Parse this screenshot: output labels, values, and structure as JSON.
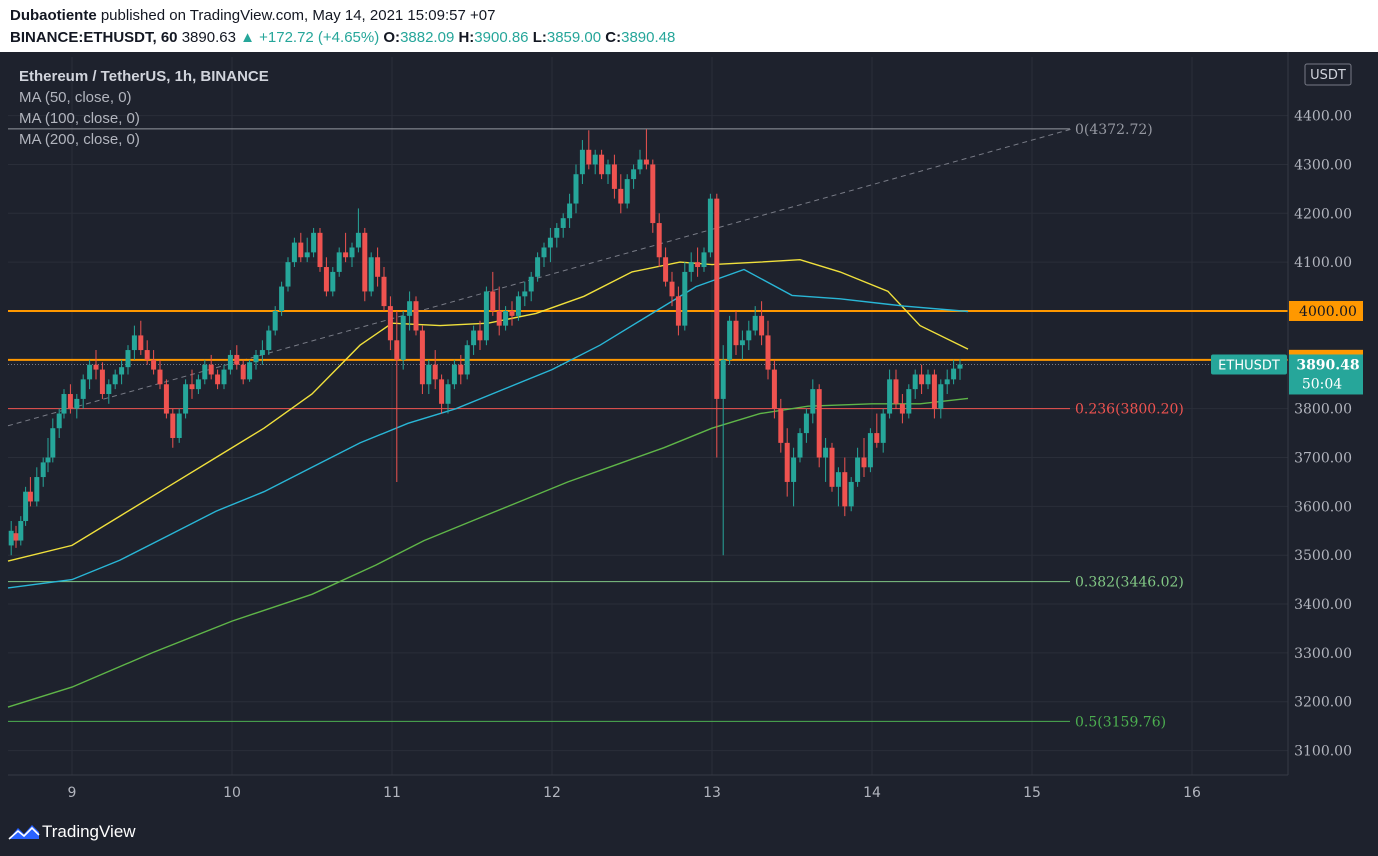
{
  "header": {
    "author": "Dubaotiente",
    "published": "published on TradingView.com, May 14, 2021 15:09:57 +07",
    "symbol": "BINANCE:ETHUSDT, 60",
    "last": "3890.63",
    "change": "▲ +172.72 (+4.65%)",
    "o_label": "O:",
    "o_value": "3882.09",
    "h_label": "H:",
    "h_value": "3900.86",
    "l_label": "L:",
    "l_value": "3859.00",
    "c_label": "C:",
    "c_value": "3890.48"
  },
  "legend": {
    "title": "Ethereum / TetherUS, 1h, BINANCE",
    "ma50": "MA (50, close, 0)",
    "ma100": "MA (100, close, 0)",
    "ma200": "MA (200, close, 0)"
  },
  "footer": {
    "brand": "TradingView"
  },
  "colors": {
    "background": "#1e222d",
    "up": "#26a69a",
    "down": "#ef5350",
    "ma50": "#f0e03c",
    "ma100": "#29b6d6",
    "ma200": "#5fb548",
    "level": "#ff9800"
  },
  "chart_data": {
    "type": "candlestick",
    "currency": "USDT",
    "ylim": [
      3050,
      4520
    ],
    "xlim": [
      8.6,
      16.6
    ],
    "y_ticks": [
      "4400.00",
      "4300.00",
      "4200.00",
      "4100.00",
      "3800.00",
      "3700.00",
      "3600.00",
      "3500.00",
      "3400.00",
      "3300.00",
      "3200.00",
      "3100.00"
    ],
    "y_tick_values": [
      4400,
      4300,
      4200,
      4100,
      3800,
      3700,
      3600,
      3500,
      3400,
      3300,
      3200,
      3100
    ],
    "x_ticks": [
      "9",
      "10",
      "11",
      "12",
      "13",
      "14",
      "15",
      "16"
    ],
    "x_tick_values": [
      9,
      10,
      11,
      12,
      13,
      14,
      15,
      16
    ],
    "horizontal_levels": [
      {
        "value": 4000,
        "label": "4000.00"
      },
      {
        "value": 3900,
        "label": "3900.00"
      }
    ],
    "last_price": {
      "symbol": "ETHUSDT",
      "value": "3890.48",
      "countdown": "50:04",
      "price": 3890.48
    },
    "fib_levels": [
      {
        "label": "0(4372.72)",
        "value": 4372.72,
        "color": "#9598a1"
      },
      {
        "label": "0.236(3800.20)",
        "value": 3800.2,
        "color": "#ef5350"
      },
      {
        "label": "0.382(3446.02)",
        "value": 3446.02,
        "color": "#81c784"
      },
      {
        "label": "0.5(3159.76)",
        "value": 3159.76,
        "color": "#4caf50"
      }
    ],
    "trend_line": {
      "from": [
        8.6,
        3765
      ],
      "to": [
        15.25,
        4372.72
      ]
    },
    "ma50": [
      [
        8.6,
        3488
      ],
      [
        9.0,
        3520
      ],
      [
        9.3,
        3580
      ],
      [
        9.6,
        3640
      ],
      [
        9.9,
        3700
      ],
      [
        10.2,
        3760
      ],
      [
        10.5,
        3830
      ],
      [
        10.8,
        3930
      ],
      [
        11.0,
        3975
      ],
      [
        11.3,
        3970
      ],
      [
        11.6,
        3975
      ],
      [
        11.9,
        3995
      ],
      [
        12.2,
        4030
      ],
      [
        12.5,
        4080
      ],
      [
        12.8,
        4100
      ],
      [
        13.0,
        4095
      ],
      [
        13.3,
        4100
      ],
      [
        13.55,
        4105
      ],
      [
        13.8,
        4080
      ],
      [
        14.1,
        4040
      ],
      [
        14.3,
        3970
      ],
      [
        14.6,
        3922
      ]
    ],
    "ma100": [
      [
        8.6,
        3433
      ],
      [
        9.0,
        3450
      ],
      [
        9.3,
        3490
      ],
      [
        9.6,
        3540
      ],
      [
        9.9,
        3590
      ],
      [
        10.2,
        3630
      ],
      [
        10.5,
        3680
      ],
      [
        10.8,
        3730
      ],
      [
        11.1,
        3770
      ],
      [
        11.4,
        3800
      ],
      [
        11.7,
        3840
      ],
      [
        12.0,
        3880
      ],
      [
        12.3,
        3930
      ],
      [
        12.6,
        3990
      ],
      [
        12.9,
        4050
      ],
      [
        13.2,
        4085
      ],
      [
        13.5,
        4032
      ],
      [
        13.8,
        4025
      ],
      [
        14.2,
        4010
      ],
      [
        14.6,
        3999
      ]
    ],
    "ma200": [
      [
        8.6,
        3189
      ],
      [
        9.0,
        3230
      ],
      [
        9.5,
        3300
      ],
      [
        10.0,
        3365
      ],
      [
        10.5,
        3420
      ],
      [
        10.9,
        3480
      ],
      [
        11.2,
        3530
      ],
      [
        11.5,
        3570
      ],
      [
        11.8,
        3610
      ],
      [
        12.1,
        3650
      ],
      [
        12.4,
        3685
      ],
      [
        12.7,
        3720
      ],
      [
        13.0,
        3760
      ],
      [
        13.3,
        3790
      ],
      [
        13.6,
        3805
      ],
      [
        14.0,
        3810
      ],
      [
        14.3,
        3810
      ],
      [
        14.6,
        3821
      ]
    ],
    "candles": [
      [
        8.62,
        3520,
        3570,
        3500,
        3550
      ],
      [
        8.65,
        3545,
        3560,
        3515,
        3530
      ],
      [
        8.68,
        3530,
        3580,
        3520,
        3570
      ],
      [
        8.71,
        3570,
        3640,
        3560,
        3630
      ],
      [
        8.74,
        3630,
        3660,
        3600,
        3610
      ],
      [
        8.78,
        3610,
        3680,
        3600,
        3660
      ],
      [
        8.82,
        3660,
        3700,
        3640,
        3690
      ],
      [
        8.85,
        3690,
        3740,
        3670,
        3700
      ],
      [
        8.88,
        3700,
        3780,
        3690,
        3760
      ],
      [
        8.92,
        3760,
        3800,
        3740,
        3790
      ],
      [
        8.95,
        3790,
        3840,
        3780,
        3830
      ],
      [
        8.99,
        3830,
        3850,
        3790,
        3800
      ],
      [
        9.03,
        3800,
        3830,
        3780,
        3820
      ],
      [
        9.07,
        3820,
        3870,
        3800,
        3860
      ],
      [
        9.11,
        3860,
        3900,
        3840,
        3890
      ],
      [
        9.15,
        3890,
        3920,
        3860,
        3880
      ],
      [
        9.19,
        3880,
        3895,
        3820,
        3830
      ],
      [
        9.23,
        3830,
        3860,
        3810,
        3850
      ],
      [
        9.27,
        3850,
        3880,
        3840,
        3870
      ],
      [
        9.31,
        3870,
        3900,
        3850,
        3885
      ],
      [
        9.35,
        3885,
        3930,
        3870,
        3920
      ],
      [
        9.39,
        3920,
        3970,
        3900,
        3950
      ],
      [
        9.43,
        3950,
        3980,
        3910,
        3920
      ],
      [
        9.47,
        3920,
        3940,
        3890,
        3900
      ],
      [
        9.51,
        3900,
        3920,
        3870,
        3880
      ],
      [
        9.55,
        3880,
        3900,
        3840,
        3850
      ],
      [
        9.59,
        3850,
        3860,
        3780,
        3790
      ],
      [
        9.63,
        3790,
        3800,
        3720,
        3740
      ],
      [
        9.67,
        3740,
        3800,
        3730,
        3790
      ],
      [
        9.71,
        3790,
        3860,
        3780,
        3850
      ],
      [
        9.75,
        3850,
        3880,
        3820,
        3840
      ],
      [
        9.79,
        3840,
        3870,
        3830,
        3860
      ],
      [
        9.83,
        3860,
        3900,
        3850,
        3890
      ],
      [
        9.87,
        3890,
        3910,
        3860,
        3870
      ],
      [
        9.91,
        3870,
        3880,
        3840,
        3850
      ],
      [
        9.95,
        3850,
        3890,
        3840,
        3880
      ],
      [
        9.99,
        3880,
        3920,
        3870,
        3910
      ],
      [
        10.03,
        3910,
        3930,
        3880,
        3890
      ],
      [
        10.07,
        3890,
        3900,
        3850,
        3860
      ],
      [
        10.11,
        3860,
        3900,
        3855,
        3895
      ],
      [
        10.15,
        3895,
        3920,
        3880,
        3910
      ],
      [
        10.19,
        3910,
        3940,
        3890,
        3920
      ],
      [
        10.23,
        3920,
        3970,
        3910,
        3960
      ],
      [
        10.27,
        3960,
        4010,
        3950,
        4000
      ],
      [
        10.31,
        4000,
        4060,
        3990,
        4050
      ],
      [
        10.35,
        4050,
        4110,
        4040,
        4100
      ],
      [
        10.39,
        4100,
        4150,
        4090,
        4140
      ],
      [
        10.43,
        4140,
        4160,
        4100,
        4110
      ],
      [
        10.47,
        4110,
        4150,
        4100,
        4120
      ],
      [
        10.51,
        4120,
        4170,
        4110,
        4160
      ],
      [
        10.55,
        4160,
        4170,
        4080,
        4090
      ],
      [
        10.59,
        4090,
        4110,
        4030,
        4040
      ],
      [
        10.63,
        4040,
        4090,
        4030,
        4080
      ],
      [
        10.67,
        4080,
        4130,
        4070,
        4120
      ],
      [
        10.71,
        4120,
        4160,
        4100,
        4110
      ],
      [
        10.75,
        4110,
        4140,
        4090,
        4130
      ],
      [
        10.79,
        4130,
        4210,
        4120,
        4160
      ],
      [
        10.83,
        4160,
        4170,
        4020,
        4040
      ],
      [
        10.87,
        4040,
        4120,
        4030,
        4110
      ],
      [
        10.91,
        4110,
        4130,
        4050,
        4070
      ],
      [
        10.95,
        4070,
        4090,
        4000,
        4010
      ],
      [
        10.99,
        4010,
        4030,
        3920,
        3940
      ],
      [
        11.03,
        3940,
        4000,
        3650,
        3900
      ],
      [
        11.07,
        3900,
        4000,
        3880,
        3990
      ],
      [
        11.11,
        3990,
        4040,
        3960,
        4020
      ],
      [
        11.15,
        4020,
        4030,
        3950,
        3960
      ],
      [
        11.19,
        3960,
        3970,
        3830,
        3850
      ],
      [
        11.23,
        3850,
        3900,
        3830,
        3890
      ],
      [
        11.27,
        3890,
        3920,
        3840,
        3860
      ],
      [
        11.31,
        3860,
        3870,
        3790,
        3810
      ],
      [
        11.35,
        3810,
        3860,
        3790,
        3850
      ],
      [
        11.39,
        3850,
        3900,
        3840,
        3890
      ],
      [
        11.43,
        3890,
        3910,
        3850,
        3870
      ],
      [
        11.47,
        3870,
        3940,
        3860,
        3930
      ],
      [
        11.51,
        3930,
        3970,
        3910,
        3960
      ],
      [
        11.55,
        3960,
        3980,
        3920,
        3940
      ],
      [
        11.59,
        3940,
        4050,
        3930,
        4040
      ],
      [
        11.63,
        4040,
        4080,
        3990,
        4000
      ],
      [
        11.67,
        4000,
        4050,
        3950,
        3970
      ],
      [
        11.71,
        3970,
        4010,
        3960,
        4000
      ],
      [
        11.75,
        4000,
        4020,
        3970,
        3990
      ],
      [
        11.79,
        3990,
        4040,
        3980,
        4030
      ],
      [
        11.83,
        4030,
        4060,
        4010,
        4040
      ],
      [
        11.87,
        4040,
        4080,
        4020,
        4070
      ],
      [
        11.91,
        4070,
        4120,
        4060,
        4110
      ],
      [
        11.95,
        4110,
        4140,
        4090,
        4130
      ],
      [
        11.99,
        4130,
        4170,
        4100,
        4150
      ],
      [
        12.03,
        4150,
        4180,
        4130,
        4170
      ],
      [
        12.07,
        4170,
        4200,
        4150,
        4190
      ],
      [
        12.11,
        4190,
        4240,
        4170,
        4220
      ],
      [
        12.15,
        4220,
        4300,
        4200,
        4280
      ],
      [
        12.19,
        4280,
        4350,
        4260,
        4330
      ],
      [
        12.23,
        4330,
        4370,
        4290,
        4300
      ],
      [
        12.27,
        4300,
        4330,
        4280,
        4320
      ],
      [
        12.31,
        4320,
        4330,
        4270,
        4280
      ],
      [
        12.35,
        4280,
        4310,
        4260,
        4300
      ],
      [
        12.39,
        4300,
        4320,
        4230,
        4250
      ],
      [
        12.43,
        4250,
        4280,
        4200,
        4220
      ],
      [
        12.47,
        4220,
        4280,
        4210,
        4270
      ],
      [
        12.51,
        4270,
        4300,
        4250,
        4290
      ],
      [
        12.55,
        4290,
        4330,
        4280,
        4310
      ],
      [
        12.59,
        4310,
        4372,
        4290,
        4300
      ],
      [
        12.63,
        4300,
        4310,
        4160,
        4180
      ],
      [
        12.67,
        4180,
        4200,
        4090,
        4110
      ],
      [
        12.71,
        4110,
        4130,
        4050,
        4060
      ],
      [
        12.75,
        4060,
        4080,
        4010,
        4030
      ],
      [
        12.79,
        4030,
        4050,
        3950,
        3970
      ],
      [
        12.83,
        3970,
        4100,
        3960,
        4080
      ],
      [
        12.87,
        4080,
        4120,
        4060,
        4100
      ],
      [
        12.91,
        4100,
        4130,
        4070,
        4090
      ],
      [
        12.95,
        4090,
        4130,
        4080,
        4120
      ],
      [
        12.99,
        4120,
        4240,
        4110,
        4230
      ],
      [
        13.03,
        4230,
        4240,
        3700,
        3820
      ],
      [
        13.07,
        3820,
        3930,
        3500,
        3900
      ],
      [
        13.11,
        3900,
        3990,
        3890,
        3980
      ],
      [
        13.15,
        3980,
        4000,
        3910,
        3930
      ],
      [
        13.19,
        3930,
        3960,
        3900,
        3940
      ],
      [
        13.23,
        3940,
        3980,
        3920,
        3960
      ],
      [
        13.27,
        3960,
        4010,
        3950,
        3990
      ],
      [
        13.31,
        3990,
        4020,
        3930,
        3950
      ],
      [
        13.35,
        3950,
        3980,
        3860,
        3880
      ],
      [
        13.39,
        3880,
        3900,
        3780,
        3800
      ],
      [
        13.43,
        3800,
        3820,
        3710,
        3730
      ],
      [
        13.47,
        3730,
        3760,
        3620,
        3650
      ],
      [
        13.51,
        3650,
        3720,
        3600,
        3700
      ],
      [
        13.55,
        3700,
        3760,
        3690,
        3750
      ],
      [
        13.59,
        3750,
        3800,
        3730,
        3790
      ],
      [
        13.63,
        3790,
        3860,
        3770,
        3840
      ],
      [
        13.67,
        3840,
        3850,
        3680,
        3700
      ],
      [
        13.71,
        3700,
        3740,
        3650,
        3720
      ],
      [
        13.75,
        3720,
        3730,
        3630,
        3640
      ],
      [
        13.79,
        3640,
        3680,
        3600,
        3670
      ],
      [
        13.83,
        3670,
        3700,
        3580,
        3600
      ],
      [
        13.87,
        3600,
        3660,
        3590,
        3650
      ],
      [
        13.91,
        3650,
        3720,
        3640,
        3700
      ],
      [
        13.95,
        3700,
        3740,
        3660,
        3680
      ],
      [
        13.99,
        3680,
        3760,
        3670,
        3750
      ],
      [
        14.03,
        3750,
        3790,
        3720,
        3730
      ],
      [
        14.07,
        3730,
        3800,
        3710,
        3790
      ],
      [
        14.11,
        3790,
        3880,
        3780,
        3860
      ],
      [
        14.15,
        3860,
        3880,
        3800,
        3810
      ],
      [
        14.19,
        3810,
        3830,
        3770,
        3790
      ],
      [
        14.23,
        3790,
        3850,
        3780,
        3840
      ],
      [
        14.27,
        3840,
        3880,
        3820,
        3870
      ],
      [
        14.31,
        3870,
        3890,
        3830,
        3850
      ],
      [
        14.35,
        3850,
        3880,
        3840,
        3870
      ],
      [
        14.39,
        3870,
        3880,
        3780,
        3800
      ],
      [
        14.43,
        3800,
        3860,
        3780,
        3850
      ],
      [
        14.47,
        3850,
        3880,
        3830,
        3860
      ],
      [
        14.51,
        3860,
        3900,
        3850,
        3882
      ],
      [
        14.55,
        3882,
        3900.86,
        3859,
        3890.48
      ]
    ]
  }
}
